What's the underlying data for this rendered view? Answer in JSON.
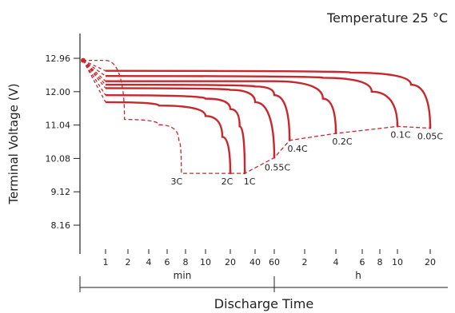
{
  "chart_data": {
    "type": "line",
    "title": "Temperature 25 °C",
    "ylabel": "Terminal Voltage (V)",
    "xlabel": "Discharge Time",
    "y_ticks": [
      "12.96",
      "12.00",
      "11.04",
      "10.08",
      "9.12",
      "8.16"
    ],
    "x_ticks": [
      "1",
      "2",
      "4",
      "6",
      "8",
      "10",
      "20",
      "40",
      "60",
      "2",
      "4",
      "6",
      "8",
      "10",
      "20"
    ],
    "x_units": [
      "min",
      "h"
    ],
    "series": [
      {
        "name": "3C",
        "points": [
          [
            1,
            12.9
          ],
          [
            1.8,
            11.2
          ],
          [
            5,
            11.05
          ],
          [
            7.2,
            10.6
          ],
          [
            7.5,
            9.65
          ],
          [
            10,
            9.65
          ],
          [
            20,
            9.65
          ]
        ]
      },
      {
        "name": "2C",
        "points": [
          [
            1,
            11.7
          ],
          [
            5,
            11.6
          ],
          [
            10,
            11.3
          ],
          [
            16,
            10.7
          ],
          [
            20,
            9.65
          ]
        ]
      },
      {
        "name": "1C",
        "points": [
          [
            1,
            11.9
          ],
          [
            10,
            11.8
          ],
          [
            20,
            11.5
          ],
          [
            26,
            11.0
          ],
          [
            30,
            9.65
          ]
        ]
      },
      {
        "name": "0.55C",
        "points": [
          [
            1,
            12.1
          ],
          [
            20,
            12.05
          ],
          [
            40,
            11.7
          ],
          [
            60,
            10.1
          ]
        ]
      },
      {
        "name": "0.4C",
        "points": [
          [
            1,
            12.2
          ],
          [
            40,
            12.15
          ],
          [
            60,
            11.9
          ],
          [
            85,
            10.6
          ]
        ]
      },
      {
        "name": "0.2C",
        "points": [
          [
            1,
            12.3
          ],
          [
            60,
            12.3
          ],
          [
            180,
            11.8
          ],
          [
            240,
            10.8
          ]
        ]
      },
      {
        "name": "0.1C",
        "points": [
          [
            1,
            12.45
          ],
          [
            180,
            12.4
          ],
          [
            420,
            12.0
          ],
          [
            600,
            11.0
          ]
        ]
      },
      {
        "name": "0.05C",
        "points": [
          [
            1,
            12.6
          ],
          [
            300,
            12.55
          ],
          [
            800,
            12.2
          ],
          [
            1200,
            10.95
          ]
        ]
      }
    ],
    "end_voltage_line": "dashed",
    "grid": false
  }
}
